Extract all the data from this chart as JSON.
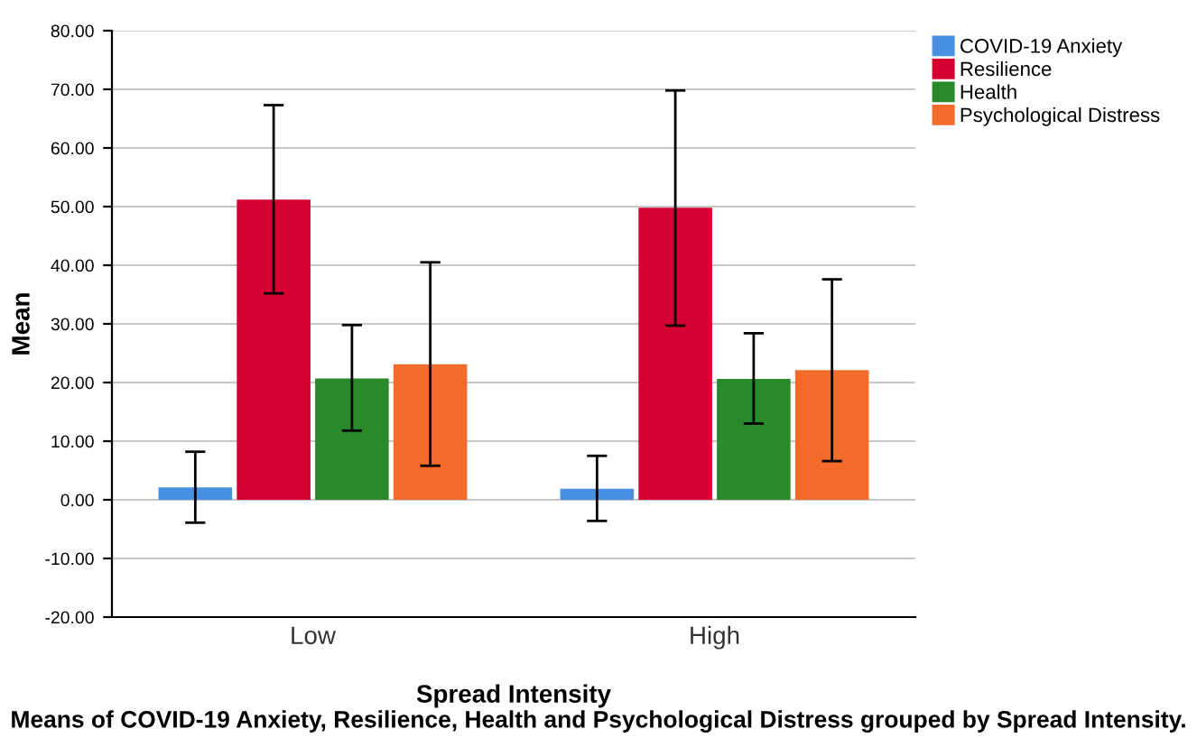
{
  "chart_data": {
    "type": "bar",
    "title": "Means of COVID-19 Anxiety, Resilience, Health and Psychological Distress grouped by Spread Intensity.",
    "xlabel": "Spread Intensity",
    "ylabel": "Mean",
    "categories": [
      "Low",
      "High"
    ],
    "series": [
      {
        "name": "COVID-19 Anxiety",
        "color": "#4a90e2",
        "values": [
          2.1,
          1.9
        ],
        "errors": [
          [
            -3.9,
            8.2
          ],
          [
            -3.6,
            7.5
          ]
        ]
      },
      {
        "name": "Resilience",
        "color": "#d40032",
        "values": [
          51.2,
          49.8
        ],
        "errors": [
          [
            35.2,
            67.3
          ],
          [
            29.7,
            69.8
          ]
        ]
      },
      {
        "name": "Health",
        "color": "#2a8a2a",
        "values": [
          20.7,
          20.6
        ],
        "errors": [
          [
            11.8,
            29.8
          ],
          [
            13.0,
            28.4
          ]
        ]
      },
      {
        "name": "Psychological Distress",
        "color": "#f26b2b",
        "values": [
          23.1,
          22.1
        ],
        "errors": [
          [
            5.8,
            40.5
          ],
          [
            6.6,
            37.6
          ]
        ]
      }
    ],
    "ylim": [
      -20,
      80
    ],
    "yticks": [
      {
        "value": -20,
        "label": "-20.00"
      },
      {
        "value": -10,
        "label": "-10.00"
      },
      {
        "value": 0,
        "label": "0.00"
      },
      {
        "value": 10,
        "label": "10.00"
      },
      {
        "value": 20,
        "label": "20.00"
      },
      {
        "value": 30,
        "label": "30.00"
      },
      {
        "value": 40,
        "label": "40.00"
      },
      {
        "value": 50,
        "label": "50.00"
      },
      {
        "value": 60,
        "label": "60.00"
      },
      {
        "value": 70,
        "label": "70.00"
      },
      {
        "value": 80,
        "label": "80.00"
      }
    ],
    "grid": "y",
    "legend": "top right"
  }
}
